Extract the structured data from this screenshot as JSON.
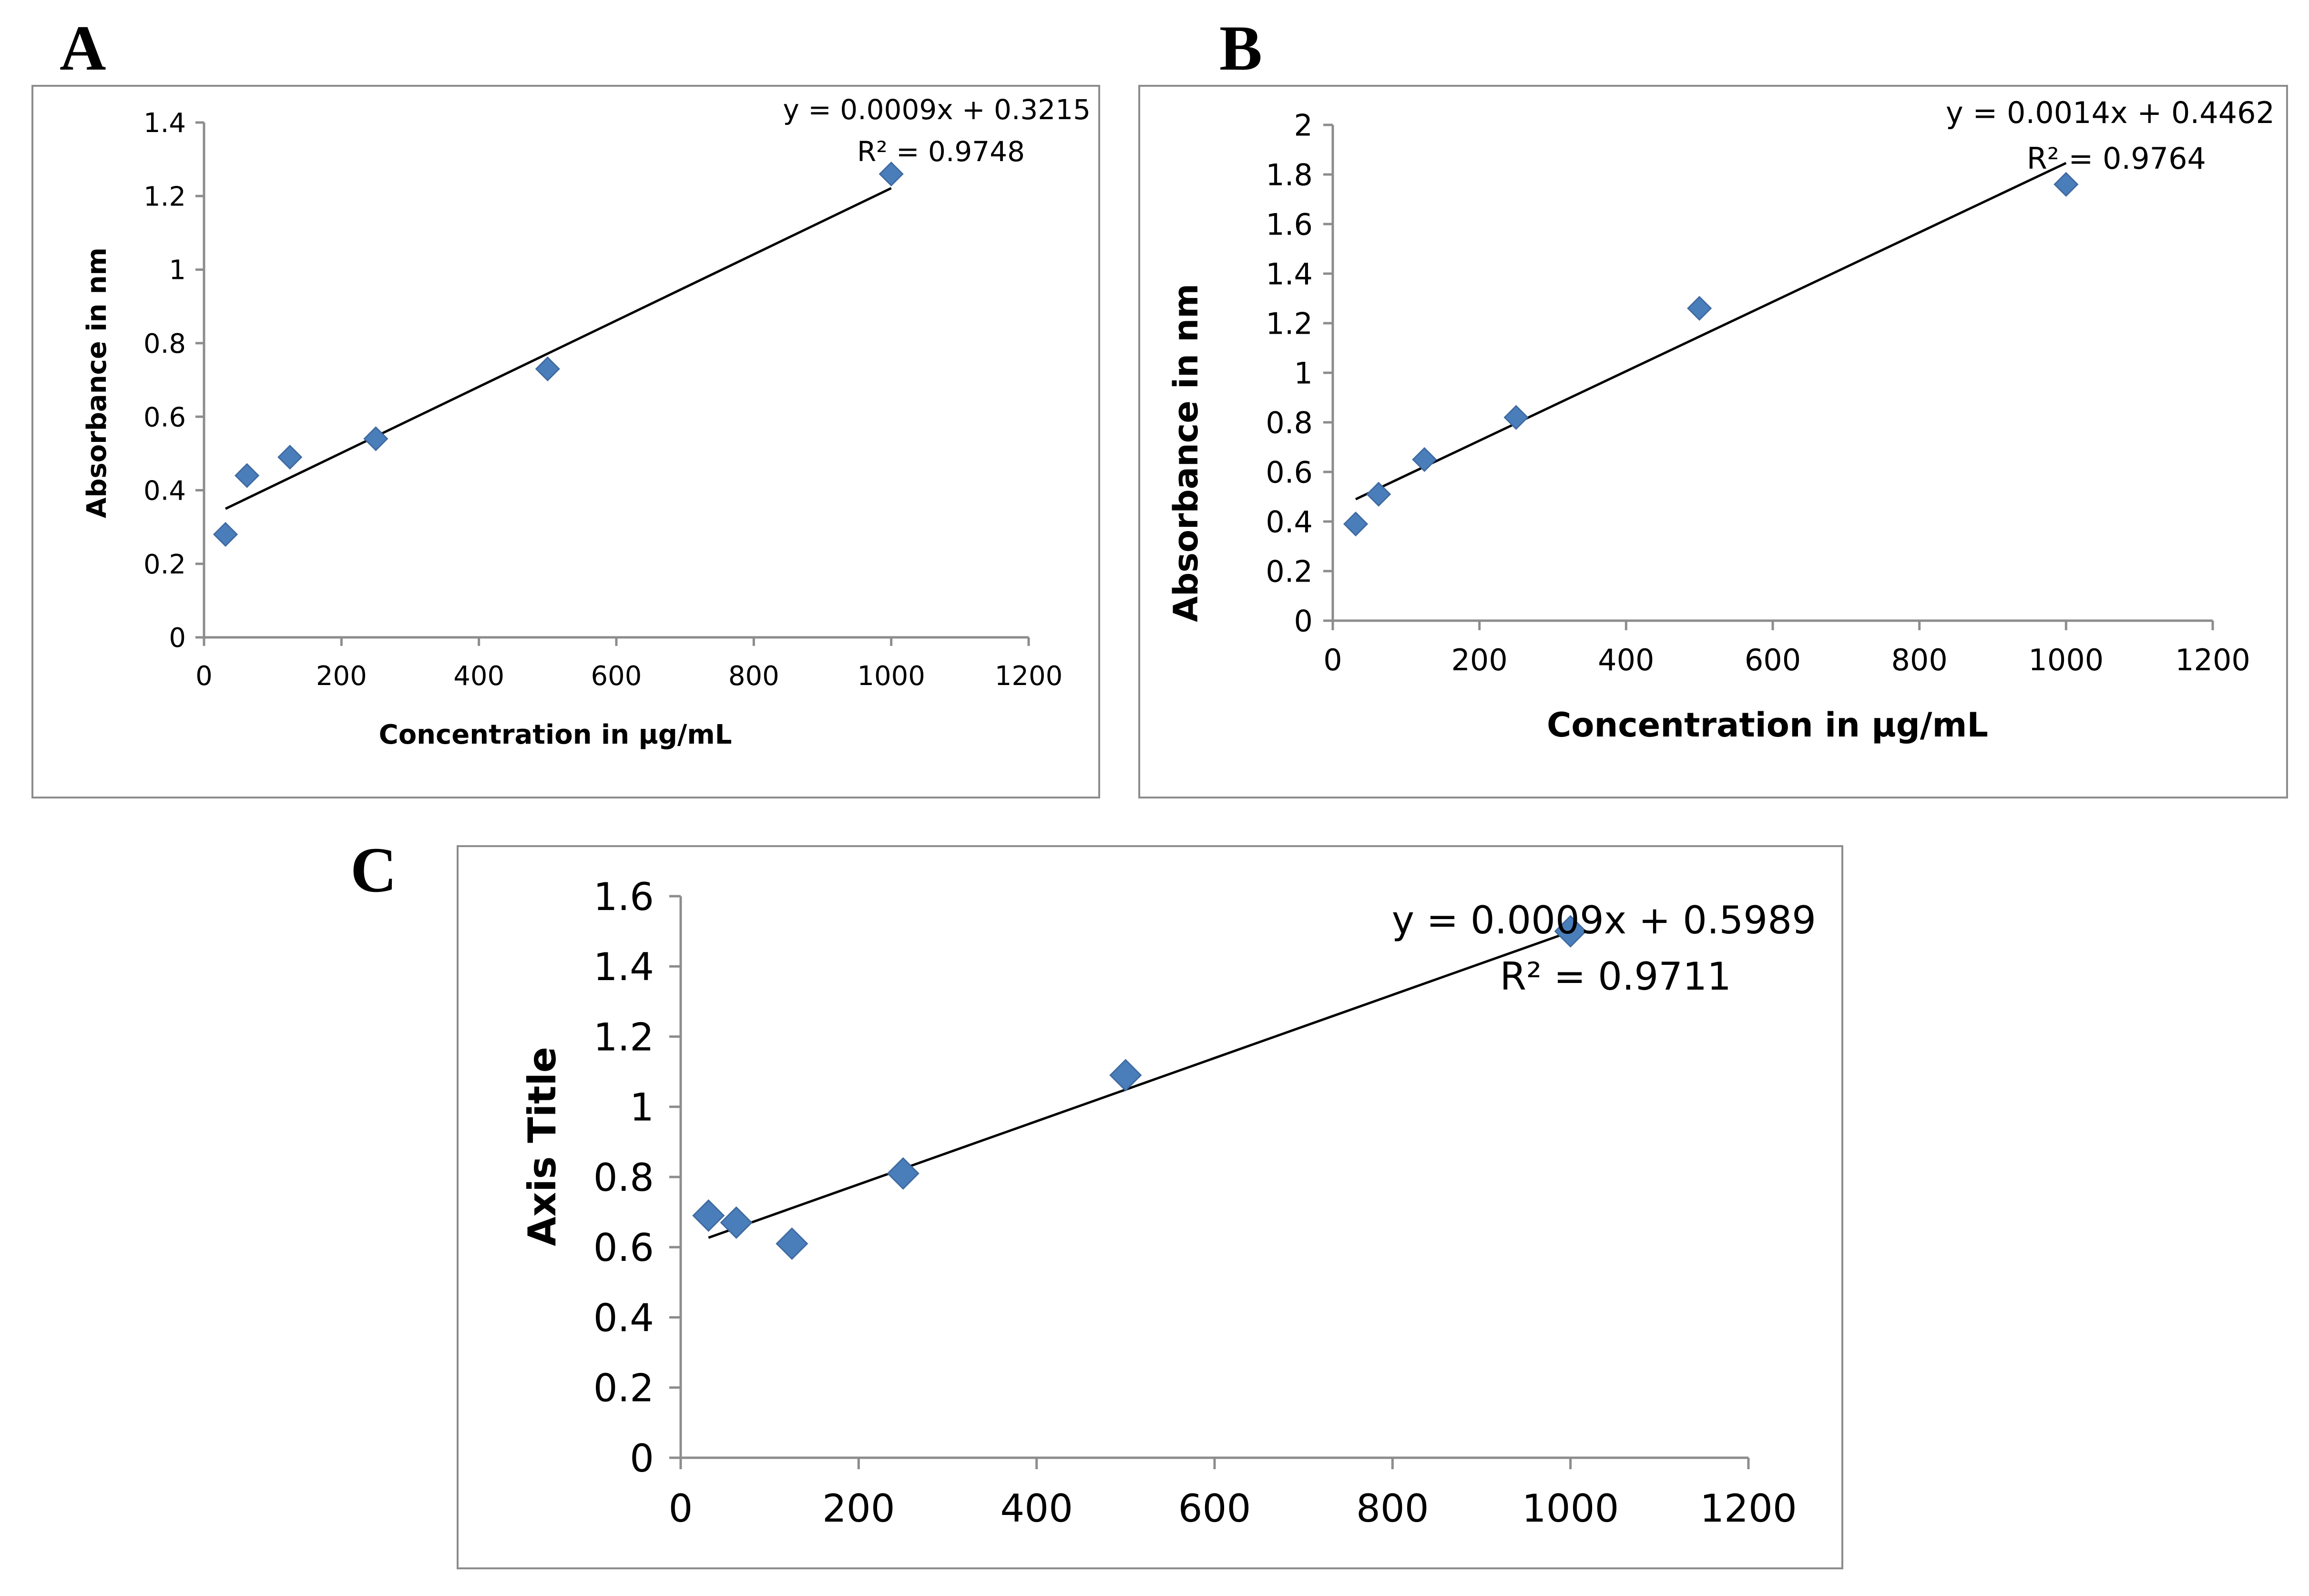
{
  "panels": [
    {
      "letter": "A",
      "equation": "y = 0.0009x + 0.3215",
      "r2": "R² = 0.9748",
      "xlabel": "Concentration in µg/mL",
      "ylabel": "Absorbance in nm"
    },
    {
      "letter": "B",
      "equation": "y = 0.0014x + 0.4462",
      "r2": "R² = 0.9764",
      "xlabel": "Concentration in µg/mL",
      "ylabel": "Absorbance in nm"
    },
    {
      "letter": "C",
      "equation": "y = 0.0009x + 0.5989",
      "r2": "R² = 0.9711",
      "xlabel": "",
      "ylabel": "Axis Title"
    }
  ],
  "chart_data": [
    {
      "type": "scatter",
      "title": "A",
      "xlabel": "Concentration in µg/mL",
      "ylabel": "Absorbance in nm",
      "xlim": [
        0,
        1200
      ],
      "ylim": [
        0,
        1.4
      ],
      "xticks": [
        "0",
        "200",
        "400",
        "600",
        "800",
        "1000",
        "1200"
      ],
      "yticks": [
        "0",
        "0.2",
        "0.4",
        "0.6",
        "0.8",
        "1",
        "1.2",
        "1.4"
      ],
      "x": [
        31.25,
        62.5,
        125,
        250,
        500,
        1000
      ],
      "y": [
        0.28,
        0.44,
        0.49,
        0.54,
        0.73,
        1.26
      ],
      "trendline": {
        "slope": 0.0009,
        "intercept": 0.3215,
        "x_range": [
          31.25,
          1000
        ]
      },
      "marker_color": "#4a7ebb",
      "grid": false,
      "legend": "none"
    },
    {
      "type": "scatter",
      "title": "B",
      "xlabel": "Concentration in µg/mL",
      "ylabel": "Absorbance in nm",
      "xlim": [
        0,
        1200
      ],
      "ylim": [
        0,
        2
      ],
      "xticks": [
        "0",
        "200",
        "400",
        "600",
        "800",
        "1000",
        "1200"
      ],
      "yticks": [
        "0",
        "0.2",
        "0.4",
        "0.6",
        "0.8",
        "1",
        "1.2",
        "1.4",
        "1.6",
        "1.8",
        "2"
      ],
      "x": [
        31.25,
        62.5,
        125,
        250,
        500,
        1000
      ],
      "y": [
        0.39,
        0.51,
        0.65,
        0.82,
        1.26,
        1.76
      ],
      "trendline": {
        "slope": 0.0014,
        "intercept": 0.4462,
        "x_range": [
          31.25,
          1000
        ]
      },
      "marker_color": "#4a7ebb",
      "grid": false,
      "legend": "none"
    },
    {
      "type": "scatter",
      "title": "C",
      "xlabel": "",
      "ylabel": "Axis Title",
      "xlim": [
        0,
        1200
      ],
      "ylim": [
        0,
        1.6
      ],
      "xticks": [
        "0",
        "200",
        "400",
        "600",
        "800",
        "1000",
        "1200"
      ],
      "yticks": [
        "0",
        "0.2",
        "0.4",
        "0.6",
        "0.8",
        "1",
        "1.2",
        "1.4",
        "1.6"
      ],
      "x": [
        31.25,
        62.5,
        125,
        250,
        500,
        1000
      ],
      "y": [
        0.69,
        0.67,
        0.61,
        0.81,
        1.09,
        1.5
      ],
      "trendline": {
        "slope": 0.0009,
        "intercept": 0.5989,
        "x_range": [
          31.25,
          1000
        ]
      },
      "marker_color": "#4a7ebb",
      "grid": false,
      "legend": "none"
    }
  ]
}
